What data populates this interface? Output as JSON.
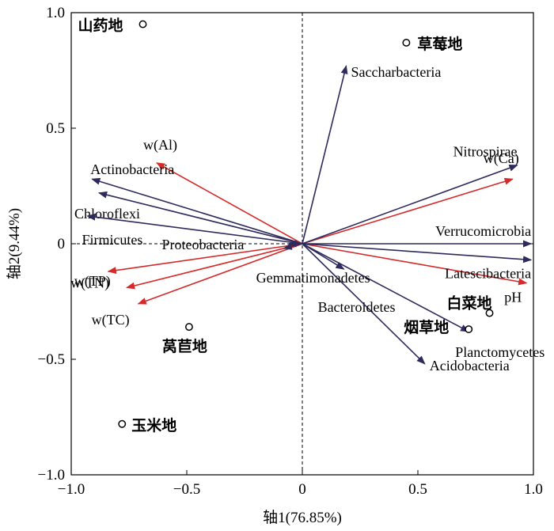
{
  "chart_data": {
    "type": "scatter",
    "subtype": "rda-biplot",
    "xlabel": "轴1(76.85%)",
    "ylabel": "轴2(9.44%)",
    "xlim": [
      -1.0,
      1.0
    ],
    "ylim": [
      -1.0,
      1.0
    ],
    "xticks": [
      "−1.0",
      "−0.5",
      "0",
      "0.5",
      "1.0"
    ],
    "yticks": [
      "−1.0",
      "−0.5",
      "0",
      "0.5",
      "1.0"
    ],
    "xtick_values": [
      -1.0,
      -0.5,
      0,
      0.5,
      1.0
    ],
    "ytick_values": [
      -1.0,
      -0.5,
      0,
      0.5,
      1.0
    ],
    "reference_lines": "dashed lines at x=0 and y=0",
    "colors": {
      "taxa": "#2e2a5c",
      "environment": "#d42a2a",
      "points": "#000000"
    },
    "sites": [
      {
        "label": "山药地",
        "x": -0.69,
        "y": 0.95
      },
      {
        "label": "草莓地",
        "x": 0.45,
        "y": 0.87
      },
      {
        "label": "白菜地",
        "x": 0.81,
        "y": -0.3
      },
      {
        "label": "烟草地",
        "x": 0.72,
        "y": -0.37
      },
      {
        "label": "莴苣地",
        "x": -0.49,
        "y": -0.36
      },
      {
        "label": "玉米地",
        "x": -0.78,
        "y": -0.78
      }
    ],
    "taxa_vectors": [
      {
        "label": "Saccharbacteria",
        "x": 0.19,
        "y": 0.77
      },
      {
        "label": "Nitrospirae",
        "x": 0.93,
        "y": 0.34
      },
      {
        "label": "Verrucomicrobia",
        "x": 0.99,
        "y": 0.0
      },
      {
        "label": "Latescibacteria",
        "x": 0.99,
        "y": -0.07
      },
      {
        "label": "Planctomycetes",
        "x": 0.72,
        "y": -0.38
      },
      {
        "label": "Acidobacteria",
        "x": 0.53,
        "y": -0.52
      },
      {
        "label": "Bacteroidetes",
        "x": 0.18,
        "y": -0.11
      },
      {
        "label": "Gemmatimonadetes",
        "x": -0.08,
        "y": -0.02
      },
      {
        "label": "Proteobacteria",
        "x": -0.06,
        "y": 0.0
      },
      {
        "label": "Actinobacteria",
        "x": -0.91,
        "y": 0.28
      },
      {
        "label": "Chloroflexi",
        "x": -0.88,
        "y": 0.22
      },
      {
        "label": "Firmicutes",
        "x": -0.93,
        "y": 0.12
      }
    ],
    "env_vectors": [
      {
        "label": "w(Al)",
        "x": -0.63,
        "y": 0.35
      },
      {
        "label": "w(Ca)",
        "x": 0.91,
        "y": 0.28
      },
      {
        "label": "pH",
        "x": 0.97,
        "y": -0.17
      },
      {
        "label": "w(TP)",
        "x": -0.84,
        "y": -0.12
      },
      {
        "label": "w(TN)",
        "x": -0.76,
        "y": -0.19
      },
      {
        "label": "w(TC)",
        "x": -0.71,
        "y": -0.26
      }
    ]
  }
}
